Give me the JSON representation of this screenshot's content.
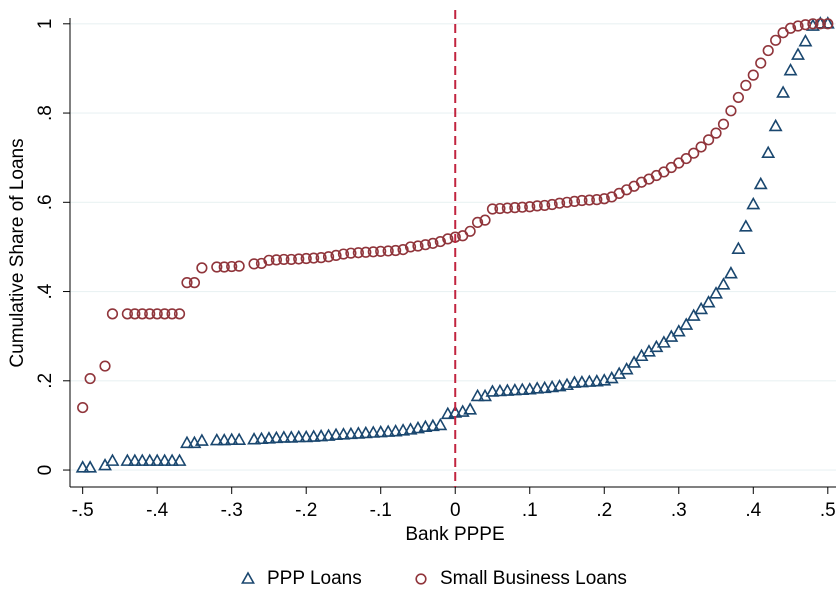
{
  "chart_data": {
    "type": "scatter",
    "x_label": "Bank PPPE",
    "y_label": "Cumulative Share of Loans",
    "x": [
      -0.5,
      -0.49,
      -0.47,
      -0.46,
      -0.44,
      -0.43,
      -0.42,
      -0.41,
      -0.4,
      -0.39,
      -0.38,
      -0.37,
      -0.36,
      -0.35,
      -0.34,
      -0.32,
      -0.31,
      -0.3,
      -0.29,
      -0.27,
      -0.26,
      -0.25,
      -0.24,
      -0.23,
      -0.22,
      -0.21,
      -0.2,
      -0.19,
      -0.18,
      -0.17,
      -0.16,
      -0.15,
      -0.14,
      -0.13,
      -0.12,
      -0.11,
      -0.1,
      -0.09,
      -0.08,
      -0.07,
      -0.06,
      -0.05,
      -0.04,
      -0.03,
      -0.02,
      -0.01,
      0,
      0.01,
      0.02,
      0.03,
      0.04,
      0.05,
      0.06,
      0.07,
      0.08,
      0.09,
      0.1,
      0.11,
      0.12,
      0.13,
      0.14,
      0.15,
      0.16,
      0.17,
      0.18,
      0.19,
      0.2,
      0.21,
      0.22,
      0.23,
      0.24,
      0.25,
      0.26,
      0.27,
      0.28,
      0.29,
      0.3,
      0.31,
      0.32,
      0.33,
      0.34,
      0.35,
      0.36,
      0.37,
      0.38,
      0.39,
      0.4,
      0.41,
      0.42,
      0.43,
      0.44,
      0.45,
      0.46,
      0.47,
      0.48,
      0.49,
      0.5
    ],
    "series": [
      {
        "name": "PPP Loans",
        "color": "#1a476f",
        "marker": "triangle",
        "values": [
          0.005,
          0.005,
          0.01,
          0.02,
          0.02,
          0.02,
          0.02,
          0.02,
          0.02,
          0.02,
          0.02,
          0.02,
          0.06,
          0.06,
          0.065,
          0.066,
          0.066,
          0.067,
          0.067,
          0.068,
          0.069,
          0.07,
          0.071,
          0.072,
          0.072,
          0.073,
          0.073,
          0.074,
          0.075,
          0.076,
          0.078,
          0.079,
          0.08,
          0.081,
          0.082,
          0.083,
          0.084,
          0.085,
          0.086,
          0.088,
          0.09,
          0.093,
          0.096,
          0.098,
          0.1,
          0.125,
          0.128,
          0.13,
          0.135,
          0.165,
          0.165,
          0.175,
          0.176,
          0.177,
          0.178,
          0.179,
          0.18,
          0.182,
          0.183,
          0.185,
          0.187,
          0.19,
          0.195,
          0.196,
          0.197,
          0.198,
          0.2,
          0.205,
          0.215,
          0.225,
          0.24,
          0.255,
          0.265,
          0.275,
          0.285,
          0.298,
          0.31,
          0.325,
          0.345,
          0.36,
          0.375,
          0.395,
          0.415,
          0.44,
          0.495,
          0.545,
          0.595,
          0.64,
          0.71,
          0.77,
          0.845,
          0.895,
          0.93,
          0.96,
          0.995,
          1,
          1
        ]
      },
      {
        "name": "Small Business Loans",
        "color": "#90353b",
        "marker": "circle",
        "values": [
          0.14,
          0.205,
          0.233,
          0.35,
          0.35,
          0.35,
          0.35,
          0.35,
          0.35,
          0.35,
          0.35,
          0.35,
          0.42,
          0.42,
          0.453,
          0.455,
          0.455,
          0.456,
          0.457,
          0.462,
          0.463,
          0.47,
          0.471,
          0.472,
          0.472,
          0.473,
          0.474,
          0.475,
          0.476,
          0.478,
          0.481,
          0.484,
          0.486,
          0.487,
          0.488,
          0.489,
          0.49,
          0.491,
          0.492,
          0.494,
          0.5,
          0.502,
          0.505,
          0.508,
          0.512,
          0.518,
          0.522,
          0.525,
          0.535,
          0.555,
          0.56,
          0.585,
          0.586,
          0.587,
          0.588,
          0.589,
          0.59,
          0.592,
          0.593,
          0.595,
          0.598,
          0.6,
          0.602,
          0.604,
          0.605,
          0.606,
          0.608,
          0.612,
          0.62,
          0.628,
          0.636,
          0.645,
          0.652,
          0.66,
          0.668,
          0.678,
          0.688,
          0.698,
          0.71,
          0.724,
          0.74,
          0.755,
          0.775,
          0.805,
          0.835,
          0.862,
          0.885,
          0.912,
          0.94,
          0.963,
          0.98,
          0.99,
          0.995,
          0.998,
          1,
          1,
          1
        ]
      }
    ],
    "xlim": [
      -0.517,
      0.511
    ],
    "ylim": [
      -0.038,
      1.013
    ],
    "xticks": [
      {
        "value": -0.5,
        "label": "-.5"
      },
      {
        "value": -0.4,
        "label": "-.4"
      },
      {
        "value": -0.3,
        "label": "-.3"
      },
      {
        "value": -0.2,
        "label": "-.2"
      },
      {
        "value": -0.1,
        "label": "-.1"
      },
      0,
      {
        "value": 0.1,
        "label": ".1"
      },
      {
        "value": 0.2,
        "label": ".2"
      },
      {
        "value": 0.3,
        "label": ".3"
      },
      {
        "value": 0.4,
        "label": ".4"
      },
      {
        "value": 0.5,
        "label": ".5"
      }
    ],
    "yticks": [
      0,
      {
        "value": 0.2,
        "label": ".2"
      },
      {
        "value": 0.4,
        "label": ".4"
      },
      {
        "value": 0.6,
        "label": ".6"
      },
      {
        "value": 0.8,
        "label": ".8"
      },
      1
    ],
    "grid": true,
    "xline": 0,
    "xline_color": "#c1243f",
    "legend": "bottom"
  }
}
